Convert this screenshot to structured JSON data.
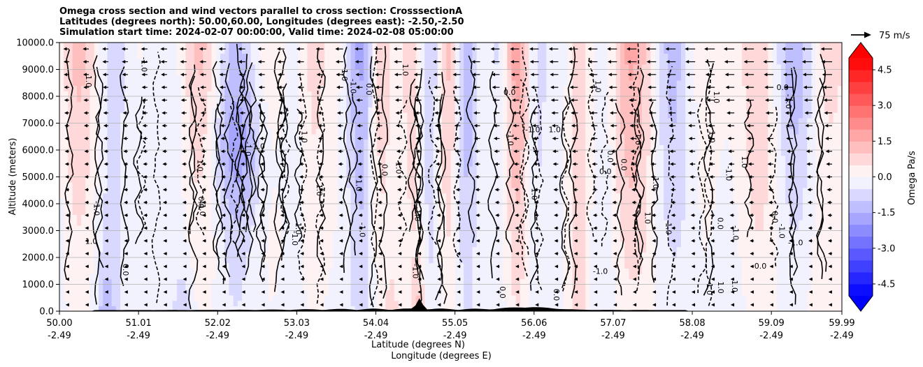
{
  "chart_data": {
    "type": "heatmap",
    "title_lines": [
      "Omega cross section and wind vectors parallel to cross section: CrosssectionA",
      "Latitudes (degrees north): 50.00,60.00, Longitudes (degrees east): -2.50,-2.50",
      "Simulation start time: 2024-02-07 00:00:00, Valid time: 2024-02-08 05:00:00"
    ],
    "xlabel": "Latitude (degrees N)",
    "xlabel2": "Longitude (degrees E)",
    "ylabel": "Altitude (meters)",
    "x_ticks_lat": [
      "50.00",
      "51.01",
      "52.02",
      "53.03",
      "54.04",
      "55.05",
      "56.06",
      "57.07",
      "58.08",
      "59.09",
      "59.99"
    ],
    "x_ticks_lon": [
      "-2.49",
      "-2.49",
      "-2.49",
      "-2.49",
      "-2.49",
      "-2.49",
      "-2.49",
      "-2.49",
      "-2.49",
      "-2.49",
      "-2.49"
    ],
    "y_ticks": [
      "0.0",
      "1000.0",
      "2000.0",
      "3000.0",
      "4000.0",
      "5000.0",
      "6000.0",
      "7000.0",
      "8000.0",
      "9000.0",
      "10000.0"
    ],
    "xlim": [
      50.0,
      59.99
    ],
    "ylim": [
      0,
      10000
    ],
    "grid": "horizontal",
    "colorbar": {
      "label": "Omega Pa/s",
      "ticks": [
        "-4.5",
        "-3.0",
        "-1.5",
        "0.0",
        "1.5",
        "3.0",
        "4.5"
      ],
      "range": [
        -5.0,
        5.0
      ],
      "extend": "both",
      "colormap": "bwr"
    },
    "quiver_key": {
      "label": "75 m/s",
      "speed": 75
    },
    "contour_labels": [
      "-1.0",
      "0.0",
      "1.0"
    ],
    "terrain_peak_lat": 54.6
  }
}
